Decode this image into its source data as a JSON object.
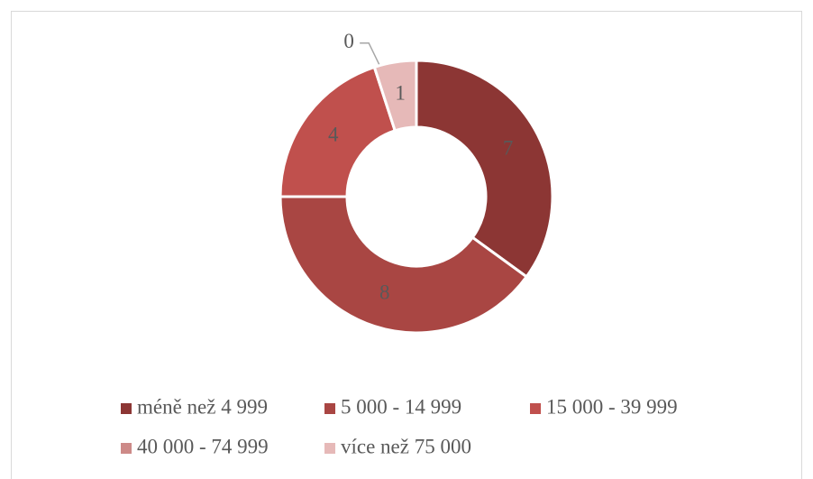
{
  "chart_data": {
    "type": "donut",
    "categories": [
      "méně než 4 999",
      "5 000 - 14 999",
      "15 000 - 39 999",
      "40 000 - 74 999",
      "více než 75 000"
    ],
    "values": [
      7,
      8,
      4,
      0,
      1
    ],
    "colors": [
      "#8c3634",
      "#a94643",
      "#c0504d",
      "#cd8a88",
      "#e6b9b8"
    ],
    "legend": "bottom"
  }
}
